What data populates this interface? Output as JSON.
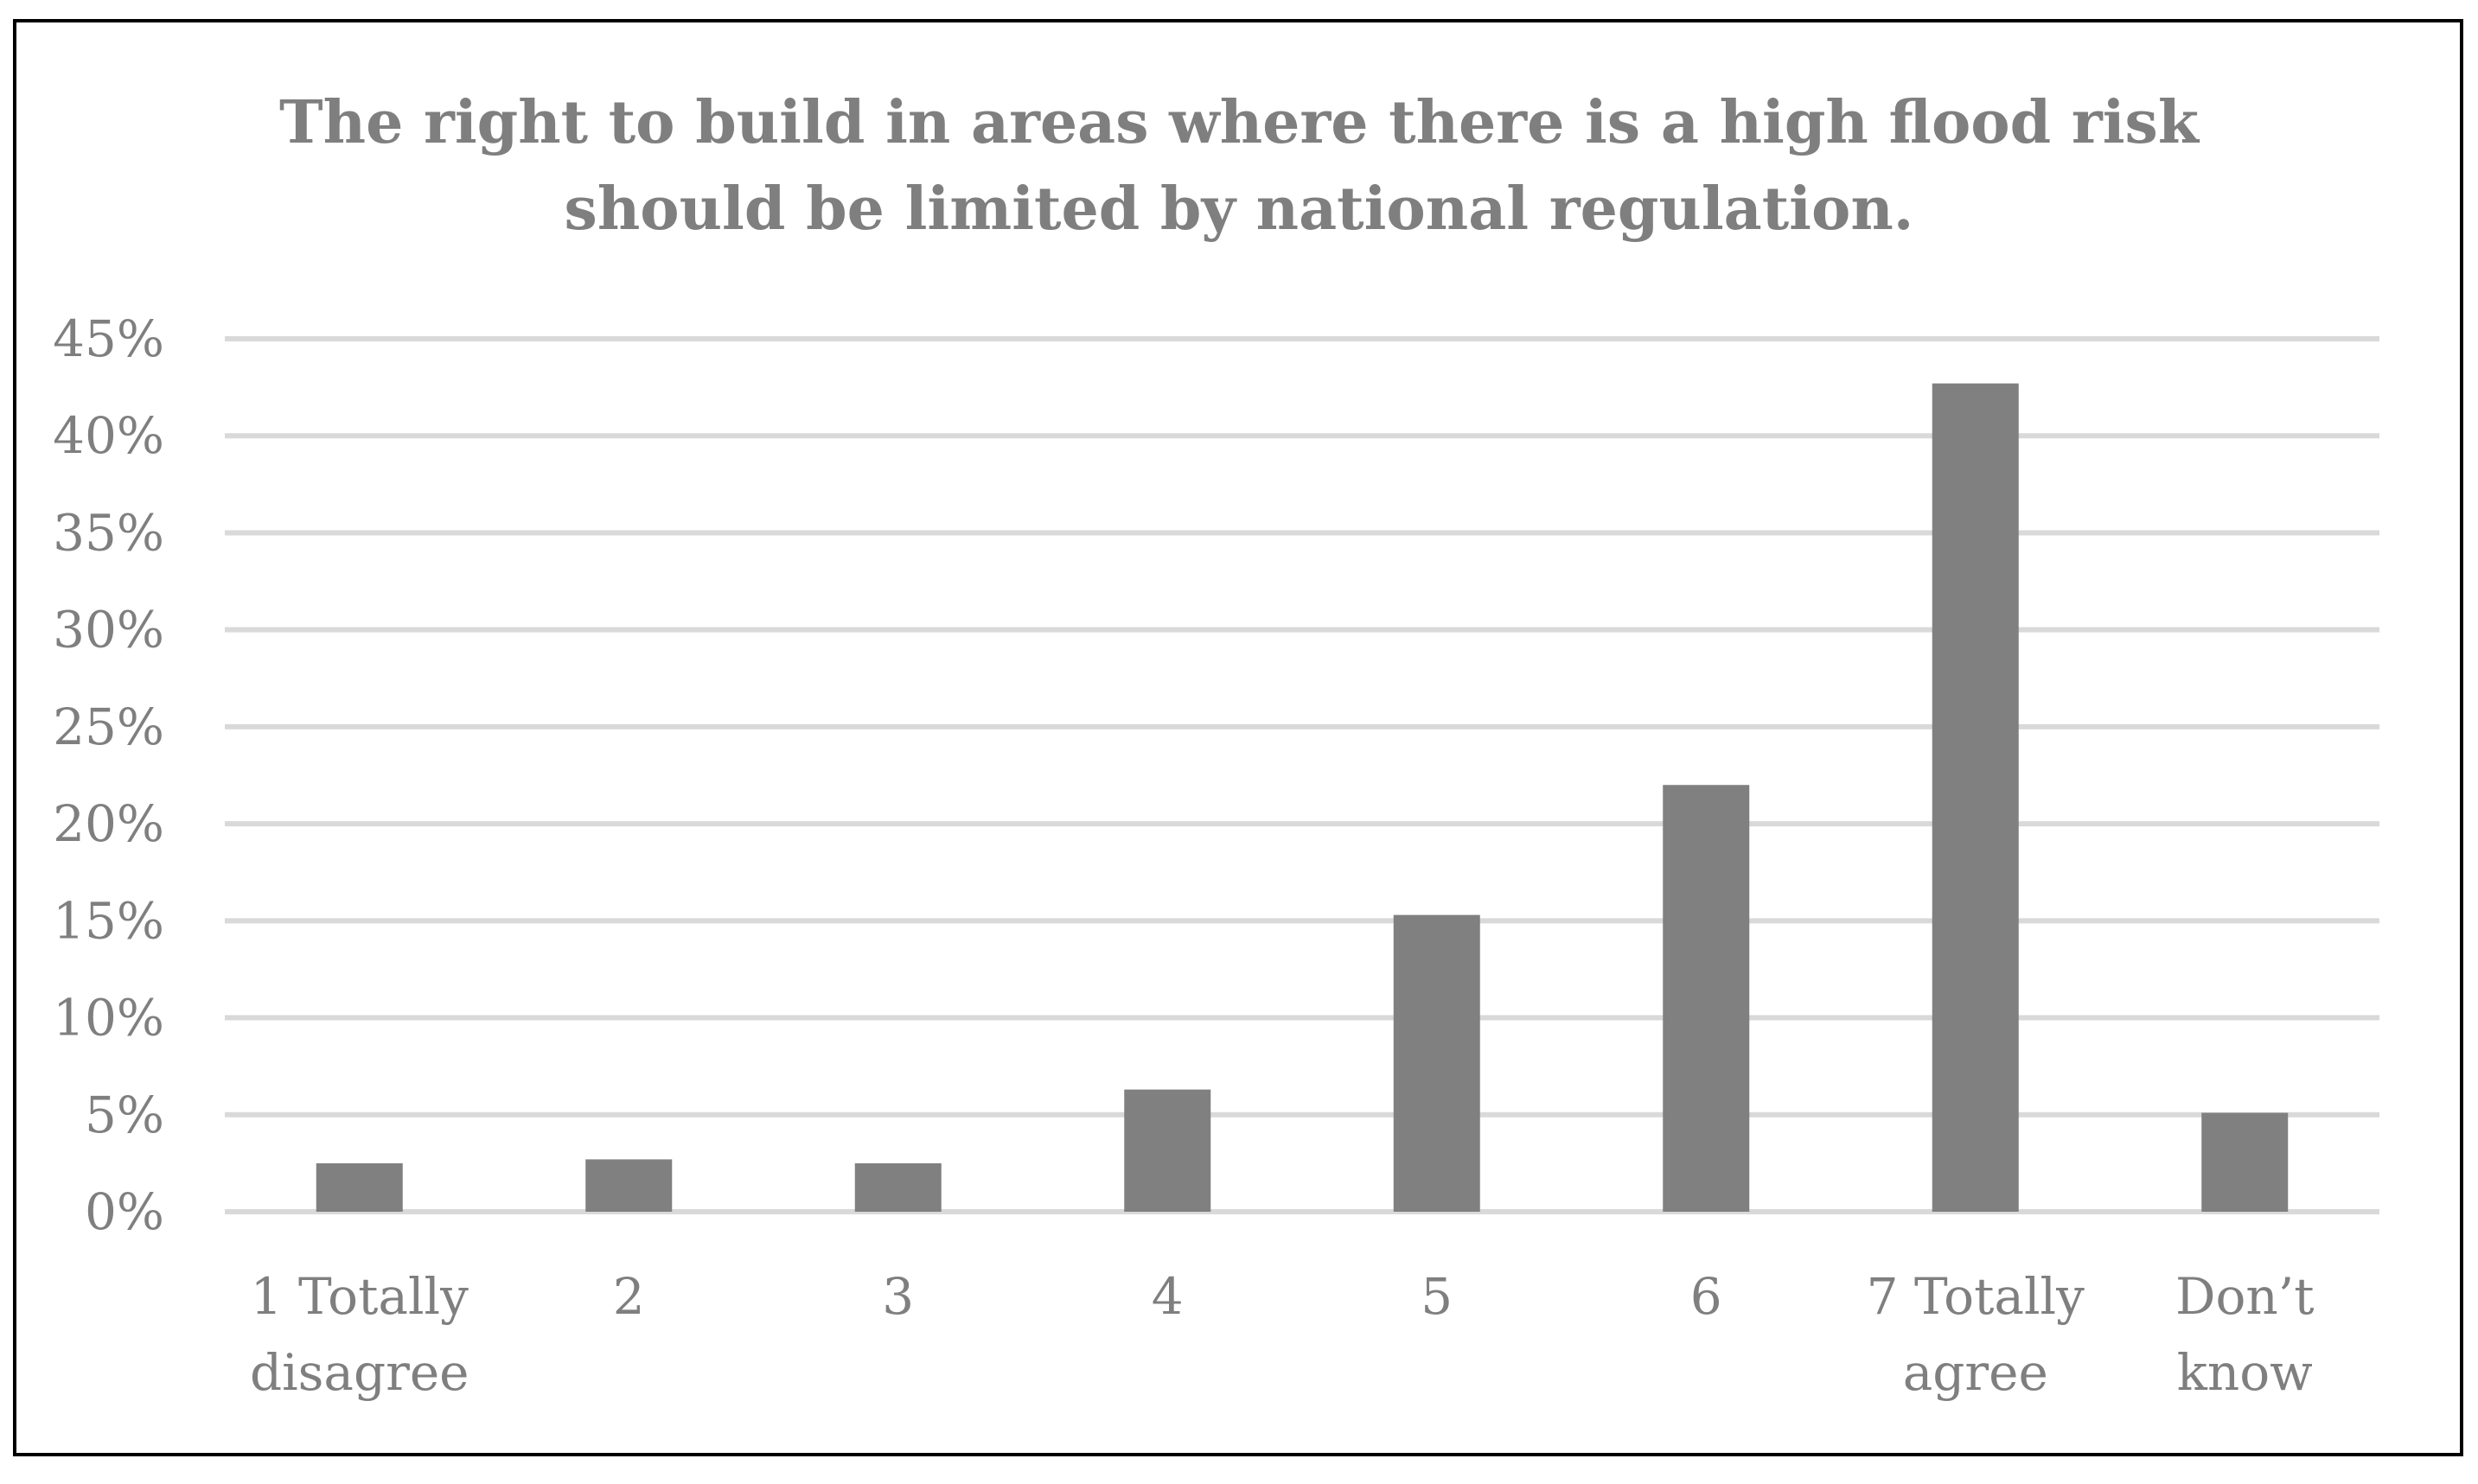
{
  "chart_data": {
    "type": "bar",
    "title": "The right to build in areas where there is a high flood risk should be limited by national regulation.",
    "title_lines": [
      "The right to build in areas where there is a high flood risk",
      "should be limited by national regulation."
    ],
    "categories": [
      [
        "1 Totally",
        "disagree"
      ],
      [
        "2"
      ],
      [
        "3"
      ],
      [
        "4"
      ],
      [
        "5"
      ],
      [
        "6"
      ],
      [
        "7 Totally",
        "agree"
      ],
      [
        "Don’t",
        "know"
      ]
    ],
    "values": [
      2.5,
      2.7,
      2.5,
      6.3,
      15.3,
      22.0,
      42.7,
      5.1
    ],
    "ylim": [
      0,
      45
    ],
    "y_ticks": [
      0,
      5,
      10,
      15,
      20,
      25,
      30,
      35,
      40,
      45
    ],
    "y_tick_format": "%",
    "xlabel": "",
    "ylabel": "",
    "grid": true,
    "legend": "none",
    "colors": {
      "bar": "#808080",
      "grid": "#d9d9d9",
      "text": "#7f7f7f",
      "frame": "#000000"
    }
  }
}
